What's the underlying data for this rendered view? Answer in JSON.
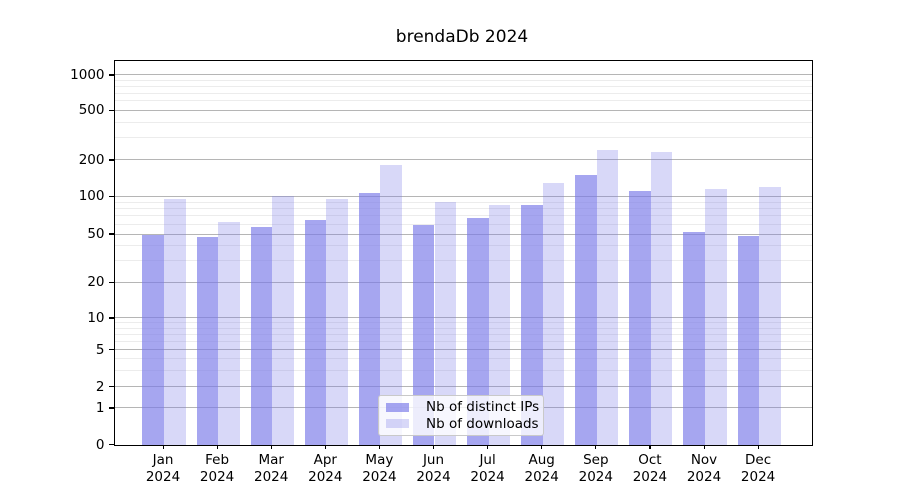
{
  "chart_data": {
    "type": "bar",
    "title": "brendaDb 2024",
    "year_line": "2024",
    "categories": [
      "Jan",
      "Feb",
      "Mar",
      "Apr",
      "May",
      "Jun",
      "Jul",
      "Aug",
      "Sep",
      "Oct",
      "Nov",
      "Dec"
    ],
    "series": [
      {
        "name": "Nb of distinct IPs",
        "color": "rgba(120,120,232,0.66)",
        "values": [
          49,
          47,
          57,
          65,
          107,
          59,
          67,
          86,
          151,
          110,
          52,
          48
        ]
      },
      {
        "name": "Nb of downloads",
        "color": "rgba(120,120,232,0.29)",
        "values": [
          96,
          62,
          100,
          95,
          180,
          91,
          86,
          128,
          240,
          232,
          115,
          120
        ]
      }
    ],
    "yticks": [
      0,
      1,
      2,
      5,
      10,
      20,
      50,
      100,
      200,
      500,
      1000
    ],
    "yscale": "symlog-like",
    "ylim_top": 1300,
    "grid": true,
    "legend_position": "lower center",
    "colors": {
      "major_grid": "#b5b5b5",
      "minor_grid": "#ececec",
      "axis": "#000000",
      "background": "#ffffff"
    }
  }
}
